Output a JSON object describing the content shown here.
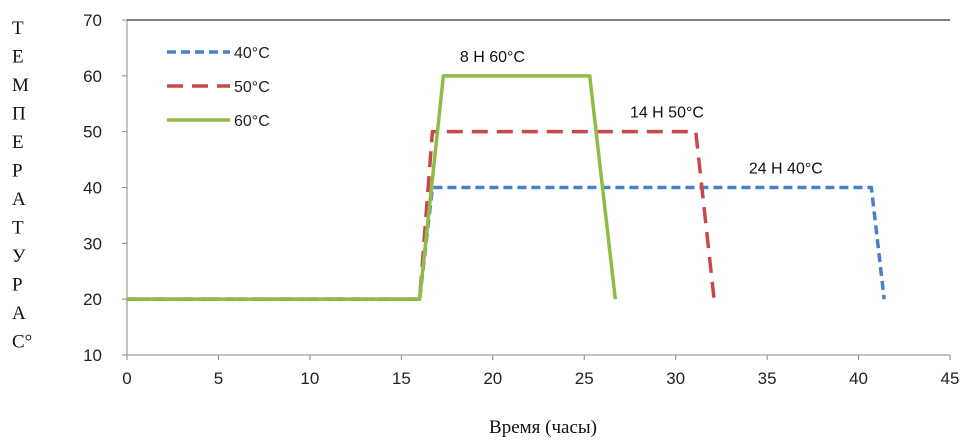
{
  "chart_data": {
    "type": "line",
    "xlabel": "Время (часы)",
    "ylabel": [
      "Т",
      "Е",
      "М",
      "П",
      "Е",
      "Р",
      "А",
      "Т",
      "У",
      "Р",
      "А",
      "С°"
    ],
    "xlim": [
      0,
      45
    ],
    "ylim": [
      10,
      70
    ],
    "xticks": [
      0,
      5,
      10,
      15,
      20,
      25,
      30,
      35,
      40,
      45
    ],
    "yticks": [
      10,
      20,
      30,
      40,
      50,
      60,
      70
    ],
    "grid": false,
    "legend_position": "top-left",
    "series": [
      {
        "name": "40°C",
        "color": "#4a7ec8",
        "style": "dotted",
        "x": [
          0,
          16,
          16.7,
          40.7,
          41.4
        ],
        "y": [
          20,
          20,
          40,
          40,
          20
        ]
      },
      {
        "name": "50°C",
        "color": "#c8474a",
        "style": "dashed",
        "x": [
          0,
          16,
          16.7,
          31.1,
          32.1
        ],
        "y": [
          20,
          20,
          50,
          50,
          20
        ]
      },
      {
        "name": "60°C",
        "color": "#8fbc47",
        "style": "solid",
        "x": [
          0,
          16,
          17.3,
          25.3,
          26.7
        ],
        "y": [
          20,
          20,
          60,
          60,
          20
        ]
      }
    ],
    "annotations": [
      {
        "text": "8 Н 60°С",
        "x": 18.2,
        "y": 62.5
      },
      {
        "text": "14 Н 50°С",
        "x": 27.5,
        "y": 52.5
      },
      {
        "text": "24 Н 40°С",
        "x": 34,
        "y": 42.5
      }
    ]
  }
}
